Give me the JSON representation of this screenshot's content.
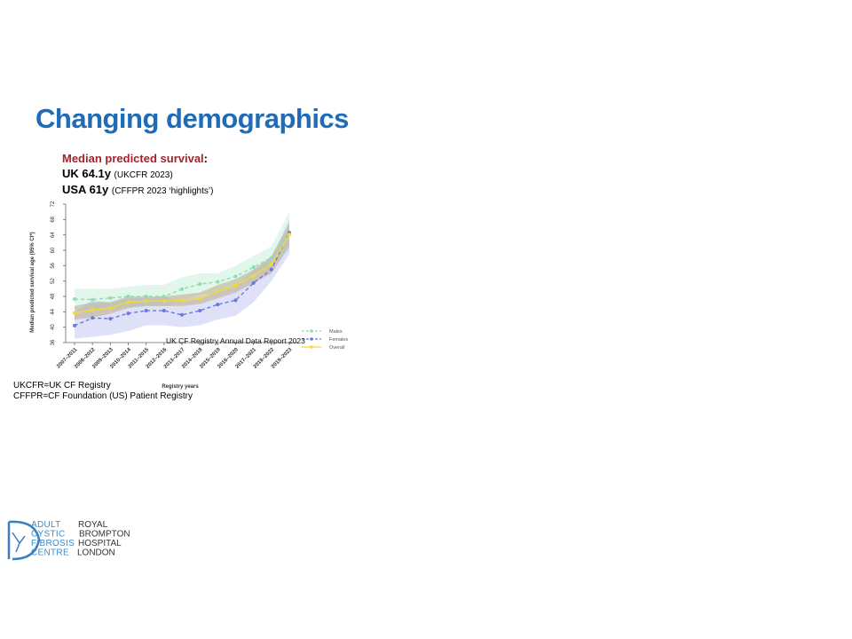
{
  "slide": {
    "title": "Changing demographics",
    "survival_heading": "Median predicted survival",
    "heading_colon": ":",
    "lines": [
      {
        "label": "UK 64.1y",
        "source": "(UKCFR 2023)"
      },
      {
        "label": "USA 61y",
        "source": "(CFFPR 2023 ‘highlights’)"
      }
    ],
    "footnotes": [
      "UKCFR=UK CF Registry",
      "CFFPR=CF Foundation (US) Patient Registry"
    ],
    "logo": {
      "left": [
        "ADULT",
        "CYSTIC",
        "FIBROSIS",
        "CENTRE"
      ],
      "right": [
        "ROYAL",
        "BROMPTON",
        "HOSPITAL",
        "LONDON"
      ]
    }
  },
  "chart_data": {
    "type": "line",
    "y_label": "Median predicted survival age (95% CI*)",
    "x_label": "Registry years",
    "annotation": "UK CF Registry Annual Data Report 2023",
    "categories": [
      "2007–2011",
      "2008–2012",
      "2009–2013",
      "2010–2014",
      "2011–2015",
      "2012–2016",
      "2013–2017",
      "2014–2018",
      "2015–2019",
      "2016–2020",
      "2017–2021",
      "2018–2022",
      "2019–2023"
    ],
    "ylim": [
      36,
      72
    ],
    "yticks": [
      36,
      40,
      44,
      48,
      52,
      56,
      60,
      64,
      68,
      72
    ],
    "series": [
      {
        "name": "Males",
        "color": "#8fdcb0",
        "band_color": "#c9f0da",
        "line_style": "dashed",
        "values": [
          47.3,
          47.2,
          47.6,
          48,
          48,
          48,
          49.9,
          51.2,
          51.8,
          53.2,
          55.6,
          58,
          64.5
        ],
        "ci_lower": [
          44.5,
          44.5,
          45,
          45.5,
          45.5,
          45.5,
          47,
          48.5,
          49,
          50.5,
          53,
          55.5,
          60
        ],
        "ci_upper": [
          50,
          50,
          50,
          50.5,
          51,
          51,
          53,
          54,
          54,
          56,
          58.5,
          61,
          70
        ]
      },
      {
        "name": "Females",
        "color": "#6b78d6",
        "band_color": "#c4c8f2",
        "line_style": "dashed",
        "values": [
          40.4,
          42.4,
          42.2,
          43.6,
          44.3,
          44.3,
          43.2,
          44.3,
          45.9,
          47,
          51.5,
          55,
          64.6
        ],
        "ci_lower": [
          37,
          37.5,
          38,
          39,
          40.5,
          40.5,
          40,
          40.5,
          42,
          43,
          46.5,
          52,
          59
        ],
        "ci_upper": [
          44,
          47,
          46.5,
          47.5,
          47.5,
          48,
          46.5,
          47.5,
          49,
          50.5,
          55,
          58,
          68
        ]
      },
      {
        "name": "Overall",
        "color": "#f2d93a",
        "band_color": "#b8ad88",
        "line_style": "solid",
        "values": [
          43.7,
          44.5,
          45,
          46.5,
          46.8,
          46.8,
          47,
          47.4,
          49.3,
          50.9,
          53.4,
          56.3,
          64.1
        ],
        "ci_lower": [
          42,
          42.5,
          43.5,
          45,
          45.5,
          45.5,
          45.5,
          46,
          47.5,
          49,
          51.5,
          54,
          61
        ],
        "ci_upper": [
          45.5,
          46.5,
          46.5,
          48,
          48,
          48,
          48.5,
          49,
          51,
          52.5,
          55,
          58.5,
          67
        ]
      }
    ]
  }
}
